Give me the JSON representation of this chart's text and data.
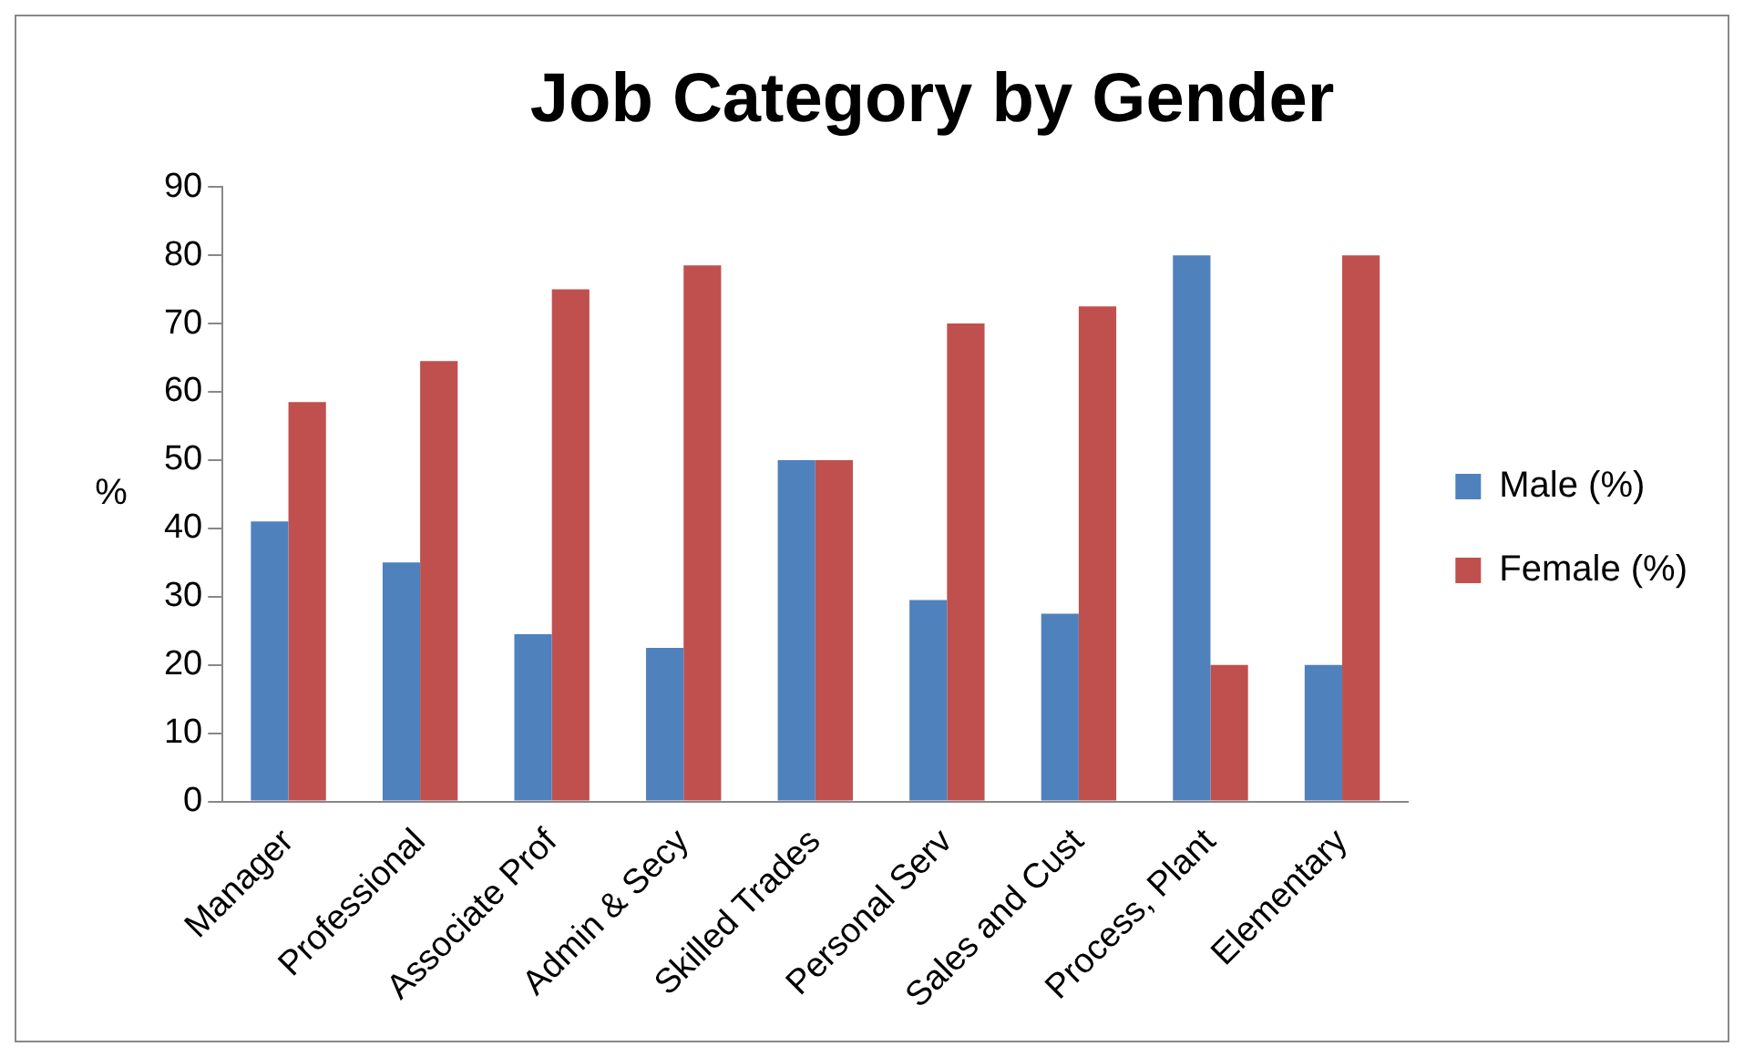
{
  "chart_data": {
    "type": "bar",
    "title": "Job Category by Gender",
    "ylabel": "%",
    "categories": [
      "Manager",
      "Professional",
      "Associate Prof",
      "Admin & Secy",
      "Skilled Trades",
      "Personal Serv",
      "Sales and Cust",
      "Process, Plant",
      "Elementary"
    ],
    "series": [
      {
        "name": "Male (%)",
        "color": "#4f81bd",
        "values": [
          41,
          35,
          24.5,
          22.5,
          50,
          29.5,
          27.5,
          80,
          20
        ]
      },
      {
        "name": "Female (%)",
        "color": "#c0504d",
        "values": [
          58.5,
          64.5,
          75,
          78.5,
          50,
          70,
          72.5,
          20,
          80
        ]
      }
    ],
    "ylim": [
      0,
      90
    ],
    "yticks": [
      0,
      10,
      20,
      30,
      40,
      50,
      60,
      70,
      80,
      90
    ],
    "grid": false,
    "legend": "right"
  }
}
